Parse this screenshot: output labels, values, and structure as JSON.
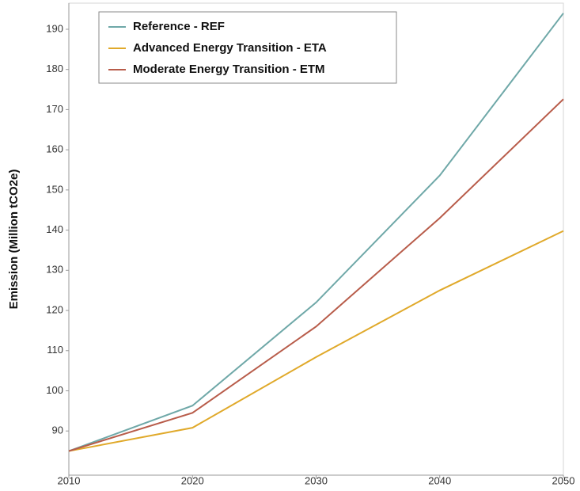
{
  "chart_data": {
    "type": "line",
    "y_label": "Emission (Million tCO2e)",
    "x": [
      2010,
      2020,
      2030,
      2040,
      2050
    ],
    "xlim": [
      2010,
      2050
    ],
    "xticks": [
      2010,
      2020,
      2030,
      2040,
      2050
    ],
    "ylim": [
      79,
      196.5
    ],
    "yticks": [
      90,
      100,
      110,
      120,
      130,
      140,
      150,
      160,
      170,
      180,
      190
    ],
    "grid": false,
    "legend": "top-left",
    "series": [
      {
        "name": "Reference - REF",
        "color": "#6fa8a8",
        "values": [
          85,
          96.3,
          122,
          153.6,
          194
        ]
      },
      {
        "name": "Advanced Energy Transition - ETA",
        "color": "#e0a92a",
        "values": [
          85,
          90.8,
          108.4,
          125,
          139.8
        ]
      },
      {
        "name": "Moderate Energy Transition - ETM",
        "color": "#b85c4a",
        "values": [
          85,
          94.5,
          116,
          143,
          172.6
        ]
      }
    ]
  }
}
